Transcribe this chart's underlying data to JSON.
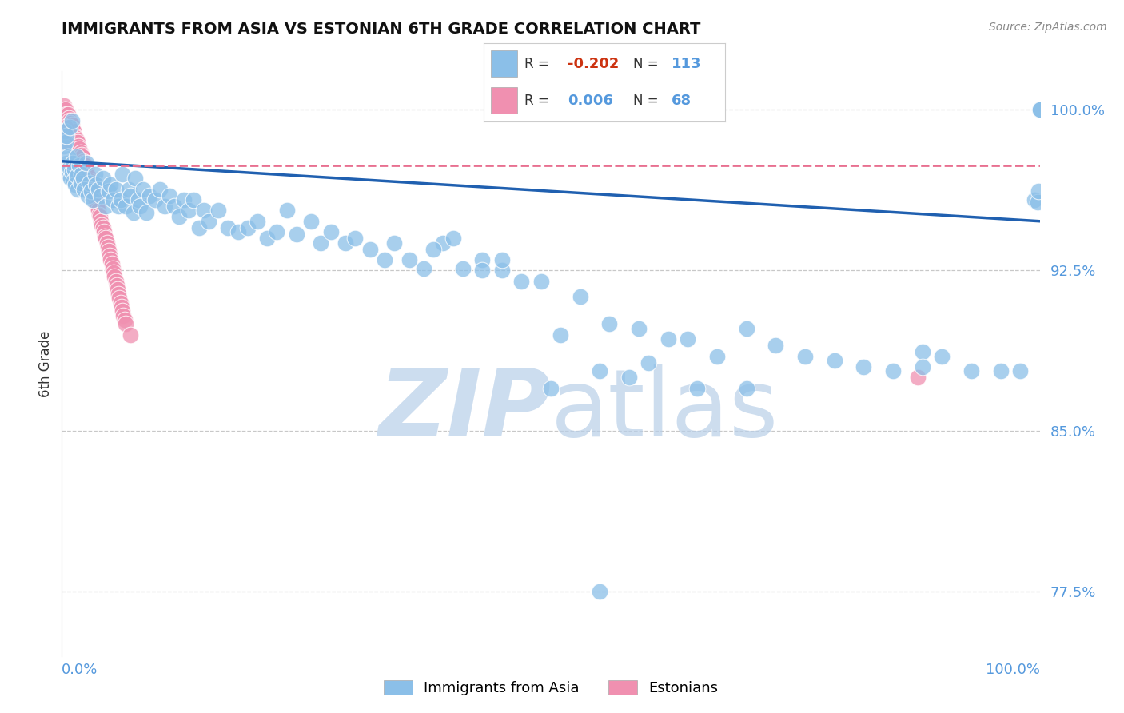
{
  "title": "IMMIGRANTS FROM ASIA VS ESTONIAN 6TH GRADE CORRELATION CHART",
  "source_text": "Source: ZipAtlas.com",
  "ylabel": "6th Grade",
  "legend_blue_r": "-0.202",
  "legend_blue_n": "113",
  "legend_pink_r": "0.006",
  "legend_pink_n": "68",
  "legend_label_blue": "Immigrants from Asia",
  "legend_label_pink": "Estonians",
  "ytick_labels": [
    "77.5%",
    "85.0%",
    "92.5%",
    "100.0%"
  ],
  "ytick_values": [
    0.775,
    0.85,
    0.925,
    1.0
  ],
  "xlim": [
    0.0,
    1.0
  ],
  "ylim": [
    0.745,
    1.018
  ],
  "blue_color": "#8bbfe8",
  "pink_color": "#f090b0",
  "trendline_blue_color": "#2060b0",
  "trendline_pink_color": "#e87090",
  "grid_color": "#c8c8c8",
  "watermark_color": "#ccddef",
  "blue_trend_x": [
    0.0,
    1.0
  ],
  "blue_trend_y": [
    0.976,
    0.948
  ],
  "pink_trend_y": [
    0.974,
    0.974
  ],
  "blue_scatter_x": [
    0.002,
    0.003,
    0.004,
    0.005,
    0.006,
    0.007,
    0.008,
    0.009,
    0.01,
    0.011,
    0.012,
    0.013,
    0.014,
    0.015,
    0.016,
    0.018,
    0.019,
    0.02,
    0.022,
    0.023,
    0.025,
    0.027,
    0.028,
    0.03,
    0.032,
    0.034,
    0.035,
    0.037,
    0.04,
    0.042,
    0.045,
    0.048,
    0.05,
    0.052,
    0.055,
    0.058,
    0.06,
    0.062,
    0.065,
    0.068,
    0.07,
    0.073,
    0.075,
    0.078,
    0.08,
    0.083,
    0.086,
    0.09,
    0.095,
    0.1,
    0.105,
    0.11,
    0.115,
    0.12,
    0.125,
    0.13,
    0.135,
    0.14,
    0.145,
    0.15,
    0.16,
    0.17,
    0.18,
    0.19,
    0.2,
    0.21,
    0.22,
    0.23,
    0.24,
    0.255,
    0.265,
    0.275,
    0.29,
    0.3,
    0.315,
    0.33,
    0.34,
    0.355,
    0.37,
    0.39,
    0.41,
    0.43,
    0.45,
    0.47,
    0.49,
    0.51,
    0.53,
    0.56,
    0.59,
    0.62,
    0.64,
    0.67,
    0.7,
    0.73,
    0.76,
    0.79,
    0.82,
    0.85,
    0.88,
    0.9,
    0.93,
    0.96,
    0.98,
    0.995,
    0.998,
    0.999,
    1.0,
    1.0,
    1.0,
    0.005,
    0.008,
    0.01,
    0.015
  ],
  "blue_scatter_y": [
    0.983,
    0.99,
    0.985,
    0.975,
    0.978,
    0.97,
    0.973,
    0.968,
    0.971,
    0.975,
    0.967,
    0.972,
    0.965,
    0.969,
    0.963,
    0.974,
    0.966,
    0.97,
    0.968,
    0.963,
    0.975,
    0.96,
    0.966,
    0.962,
    0.958,
    0.97,
    0.965,
    0.963,
    0.96,
    0.968,
    0.955,
    0.962,
    0.965,
    0.958,
    0.963,
    0.955,
    0.958,
    0.97,
    0.955,
    0.963,
    0.96,
    0.952,
    0.968,
    0.958,
    0.955,
    0.963,
    0.952,
    0.96,
    0.958,
    0.963,
    0.955,
    0.96,
    0.955,
    0.95,
    0.958,
    0.953,
    0.958,
    0.945,
    0.953,
    0.948,
    0.953,
    0.945,
    0.943,
    0.945,
    0.948,
    0.94,
    0.943,
    0.953,
    0.942,
    0.948,
    0.938,
    0.943,
    0.938,
    0.94,
    0.935,
    0.93,
    0.938,
    0.93,
    0.926,
    0.938,
    0.926,
    0.93,
    0.925,
    0.92,
    0.92,
    0.895,
    0.913,
    0.9,
    0.898,
    0.893,
    0.893,
    0.885,
    0.898,
    0.89,
    0.885,
    0.883,
    0.88,
    0.878,
    0.887,
    0.885,
    0.878,
    0.878,
    0.878,
    0.958,
    0.957,
    0.962,
    1.0,
    1.0,
    1.0,
    0.988,
    0.992,
    0.995,
    0.978
  ],
  "blue_scatter_outliers_x": [
    0.38,
    0.4,
    0.43,
    0.45,
    0.5,
    0.55,
    0.58,
    0.6,
    0.65,
    0.7,
    0.88,
    0.55
  ],
  "blue_scatter_outliers_y": [
    0.935,
    0.94,
    0.925,
    0.93,
    0.87,
    0.878,
    0.875,
    0.882,
    0.87,
    0.87,
    0.88,
    0.775
  ],
  "pink_scatter_x": [
    0.002,
    0.003,
    0.004,
    0.005,
    0.006,
    0.007,
    0.008,
    0.009,
    0.01,
    0.011,
    0.012,
    0.013,
    0.014,
    0.015,
    0.016,
    0.017,
    0.018,
    0.019,
    0.02,
    0.021,
    0.022,
    0.023,
    0.024,
    0.025,
    0.026,
    0.027,
    0.028,
    0.029,
    0.03,
    0.031,
    0.032,
    0.033,
    0.034,
    0.035,
    0.036,
    0.037,
    0.038,
    0.039,
    0.04,
    0.041,
    0.042,
    0.043,
    0.044,
    0.045,
    0.046,
    0.047,
    0.048,
    0.049,
    0.05,
    0.051,
    0.052,
    0.053,
    0.054,
    0.055,
    0.056,
    0.057,
    0.058,
    0.059,
    0.06,
    0.061,
    0.062,
    0.063,
    0.064,
    0.065,
    0.07,
    0.002,
    0.004,
    0.875
  ],
  "pink_scatter_y": [
    1.002,
    1.0,
    1.0,
    0.998,
    0.998,
    0.996,
    0.995,
    0.994,
    0.993,
    0.991,
    0.99,
    0.988,
    0.987,
    0.986,
    0.985,
    0.983,
    0.982,
    0.98,
    0.979,
    0.978,
    0.976,
    0.975,
    0.974,
    0.972,
    0.97,
    0.969,
    0.967,
    0.966,
    0.964,
    0.963,
    0.961,
    0.96,
    0.958,
    0.956,
    0.955,
    0.953,
    0.951,
    0.95,
    0.948,
    0.946,
    0.945,
    0.943,
    0.941,
    0.94,
    0.938,
    0.936,
    0.934,
    0.932,
    0.93,
    0.928,
    0.926,
    0.924,
    0.922,
    0.92,
    0.918,
    0.916,
    0.914,
    0.912,
    0.91,
    0.908,
    0.906,
    0.904,
    0.902,
    0.9,
    0.895,
    0.985,
    0.992,
    0.875
  ]
}
